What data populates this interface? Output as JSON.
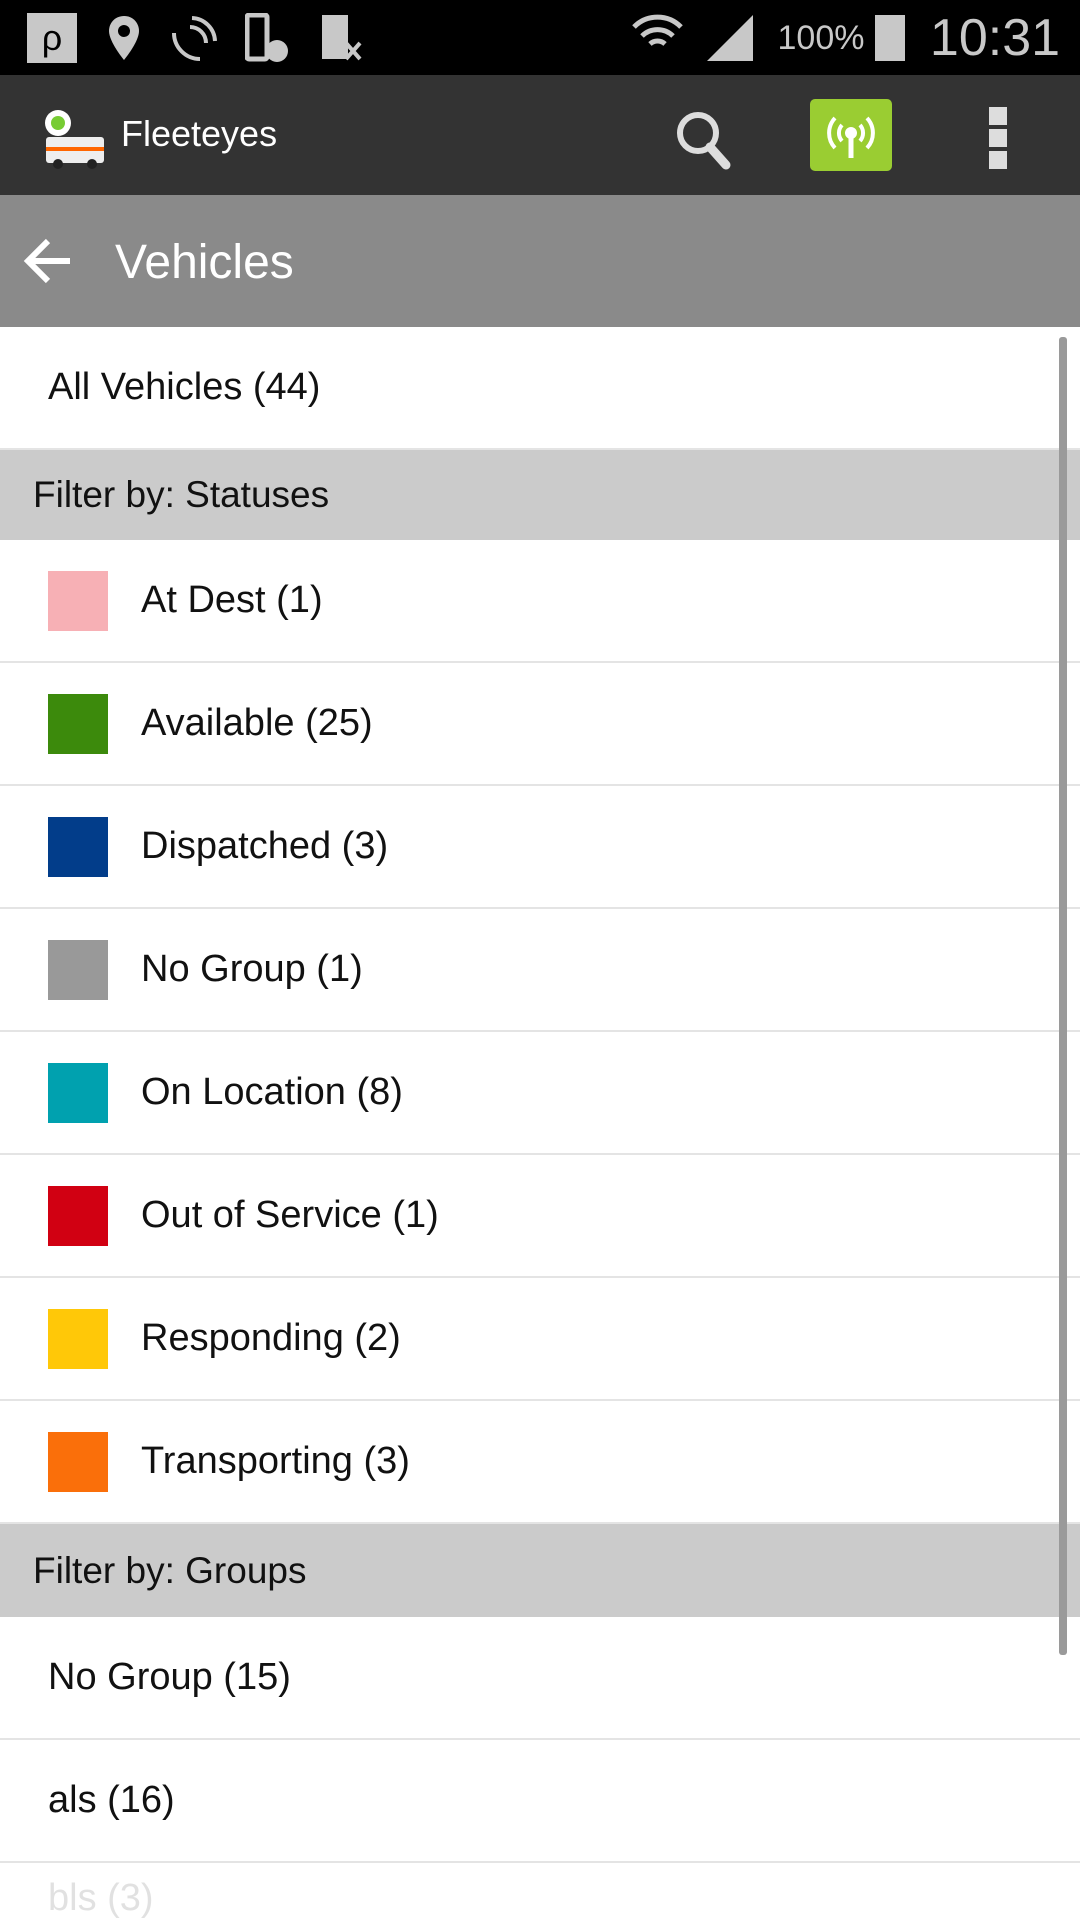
{
  "status_bar": {
    "battery": "100%",
    "time": "10:31",
    "icons": [
      "p-app-icon",
      "location-pin-icon",
      "satellite-icon",
      "phone-clock-icon",
      "sim-off-icon",
      "wifi-icon",
      "signal-icon",
      "battery-icon"
    ]
  },
  "app_bar": {
    "title": "Fleeteyes",
    "logo": "fleeteyes-ambulance-logo",
    "actions": [
      "search-icon",
      "antenna-icon",
      "overflow-menu-icon"
    ],
    "antenna_color": "#9acd32"
  },
  "sub_bar": {
    "title": "Vehicles",
    "back_icon": "arrow-left-icon"
  },
  "all_vehicles": "All Vehicles (44)",
  "statuses": {
    "header": "Filter by: Statuses",
    "items": [
      {
        "label": "At Dest (1)",
        "color": "#f7b0b5"
      },
      {
        "label": "Available (25)",
        "color": "#3c8a0c"
      },
      {
        "label": "Dispatched (3)",
        "color": "#023d8a"
      },
      {
        "label": "No Group (1)",
        "color": "#999999"
      },
      {
        "label": "On Location (8)",
        "color": "#00a1af"
      },
      {
        "label": "Out of Service (1)",
        "color": "#d10012"
      },
      {
        "label": "Responding (2)",
        "color": "#ffc808"
      },
      {
        "label": "Transporting (3)",
        "color": "#fa6f0a"
      }
    ]
  },
  "groups": {
    "header": "Filter by: Groups",
    "items": [
      {
        "label": "No Group (15)"
      },
      {
        "label": "als (16)"
      },
      {
        "label": "bls (3)"
      }
    ]
  }
}
